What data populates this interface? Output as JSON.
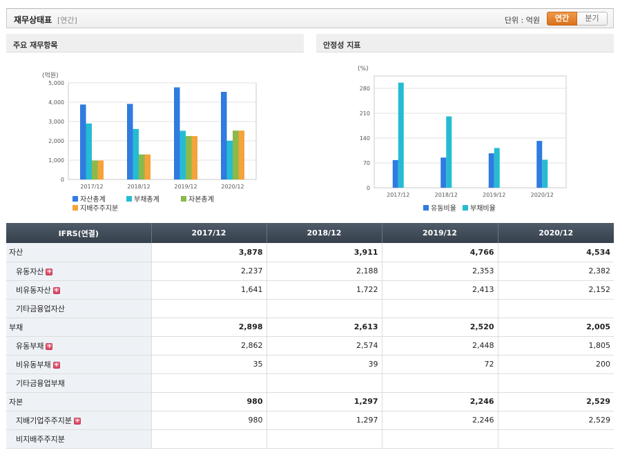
{
  "header": {
    "title": "재무상태표",
    "sub": "[연간]",
    "unit": "단위 : 억원",
    "toggle": {
      "annual": "연간",
      "quarter": "분기"
    },
    "colors": {
      "accent": "#e07f2c"
    }
  },
  "panels": {
    "left_title": "주요 재무항목",
    "right_title": "안정성 지표"
  },
  "chart_data": [
    {
      "type": "bar",
      "unit_label": "(억원)",
      "categories": [
        "2017/12",
        "2018/12",
        "2019/12",
        "2020/12"
      ],
      "ylim": [
        0,
        5000
      ],
      "yticks": [
        0,
        1000,
        2000,
        3000,
        4000,
        5000
      ],
      "ytick_labels": [
        "0",
        "1,000",
        "2,000",
        "3,000",
        "4,000",
        "5,000"
      ],
      "grid": true,
      "legend_position": "bottom",
      "series": [
        {
          "name": "자산총계",
          "color": "#2f7be0",
          "values": [
            3878,
            3911,
            4766,
            4534
          ]
        },
        {
          "name": "부채총계",
          "color": "#25bcd3",
          "values": [
            2898,
            2613,
            2520,
            2005
          ]
        },
        {
          "name": "자본총계",
          "color": "#8bb94a",
          "values": [
            980,
            1297,
            2246,
            2529
          ]
        },
        {
          "name": "지배주주지분",
          "color": "#f5a33a",
          "values": [
            980,
            1297,
            2246,
            2529
          ]
        }
      ]
    },
    {
      "type": "bar",
      "unit_label": "(%)",
      "categories": [
        "2017/12",
        "2018/12",
        "2019/12",
        "2020/12"
      ],
      "ylim": [
        0,
        315
      ],
      "yticks": [
        0,
        70,
        140,
        210,
        280
      ],
      "ytick_labels": [
        "0",
        "70",
        "140",
        "210",
        "280"
      ],
      "grid": true,
      "legend_position": "bottom",
      "series": [
        {
          "name": "유동비율",
          "color": "#2f7be0",
          "values": [
            78,
            85,
            97,
            132
          ]
        },
        {
          "name": "부채비율",
          "color": "#25bcd3",
          "values": [
            296,
            201,
            112,
            79
          ]
        }
      ]
    }
  ],
  "table": {
    "corner": "IFRS(연결)",
    "columns": [
      "2017/12",
      "2018/12",
      "2019/12",
      "2020/12"
    ],
    "rows": [
      {
        "label": "자산",
        "type": "main",
        "plus": false,
        "values": [
          "3,878",
          "3,911",
          "4,766",
          "4,534"
        ]
      },
      {
        "label": "유동자산",
        "type": "sub",
        "plus": true,
        "values": [
          "2,237",
          "2,188",
          "2,353",
          "2,382"
        ]
      },
      {
        "label": "비유동자산",
        "type": "sub",
        "plus": true,
        "values": [
          "1,641",
          "1,722",
          "2,413",
          "2,152"
        ]
      },
      {
        "label": "기타금융업자산",
        "type": "sub",
        "plus": false,
        "values": [
          "",
          "",
          "",
          ""
        ]
      },
      {
        "label": "부채",
        "type": "main",
        "plus": false,
        "values": [
          "2,898",
          "2,613",
          "2,520",
          "2,005"
        ]
      },
      {
        "label": "유동부채",
        "type": "sub",
        "plus": true,
        "values": [
          "2,862",
          "2,574",
          "2,448",
          "1,805"
        ]
      },
      {
        "label": "비유동부채",
        "type": "sub",
        "plus": true,
        "values": [
          "35",
          "39",
          "72",
          "200"
        ]
      },
      {
        "label": "기타금융업부채",
        "type": "sub",
        "plus": false,
        "values": [
          "",
          "",
          "",
          ""
        ]
      },
      {
        "label": "자본",
        "type": "main",
        "plus": false,
        "values": [
          "980",
          "1,297",
          "2,246",
          "2,529"
        ]
      },
      {
        "label": "지배기업주주지분",
        "type": "sub",
        "plus": true,
        "values": [
          "980",
          "1,297",
          "2,246",
          "2,529"
        ]
      },
      {
        "label": "비지배주주지분",
        "type": "sub",
        "plus": false,
        "values": [
          "",
          "",
          "",
          ""
        ]
      }
    ],
    "plus_glyph": "+"
  }
}
